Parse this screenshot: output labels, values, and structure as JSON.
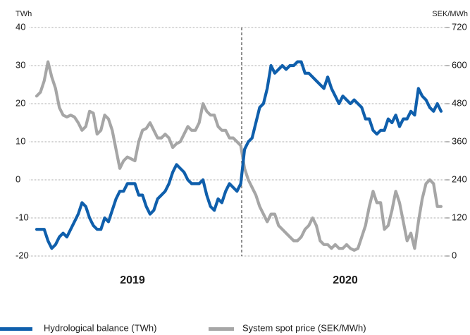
{
  "chart_data": {
    "type": "line",
    "y_label": "TWh",
    "y2_label": "SEK/MWh",
    "x_groups": [
      "2019",
      "2020"
    ],
    "ylim": [
      -20,
      40
    ],
    "yticks": [
      -20,
      -10,
      0,
      10,
      20,
      30,
      40
    ],
    "y2lim": [
      0,
      720
    ],
    "y2ticks": [
      0,
      120,
      240,
      360,
      480,
      600,
      720
    ],
    "grid": true,
    "legend": "bottom",
    "categories": [
      null,
      null,
      null,
      null,
      null,
      null,
      null,
      null,
      null,
      null,
      null,
      null,
      null,
      null,
      null,
      null,
      null,
      null,
      null,
      null,
      null,
      null,
      null,
      null,
      null,
      null,
      null,
      null,
      null,
      null,
      null,
      null,
      null,
      null,
      null,
      null,
      null,
      null,
      null,
      null,
      null,
      null,
      null,
      null,
      null,
      null,
      null,
      null,
      null,
      null,
      null,
      null,
      null,
      null,
      null,
      null,
      null,
      null,
      null,
      null,
      null,
      null,
      null,
      null,
      null,
      null,
      null,
      null,
      null,
      null,
      null,
      null,
      null,
      null,
      null,
      null,
      null,
      null,
      null,
      null,
      null,
      null,
      null,
      null,
      null,
      null,
      null,
      null,
      null,
      null,
      null,
      null,
      null,
      null,
      null,
      null,
      null,
      null,
      null,
      null,
      null,
      null,
      null,
      null,
      null,
      null,
      null,
      null
    ],
    "series": [
      {
        "name": "Hydrological balance (TWh)",
        "color": "#0f5fac",
        "axis": "y",
        "values": [
          -13,
          -13,
          -13,
          -16,
          -18,
          -17,
          -15,
          -14,
          -15,
          -13,
          -11,
          -9,
          -6,
          -7,
          -10,
          -12,
          -13,
          -13,
          -10,
          -11,
          -8,
          -5,
          -3,
          -3,
          -1,
          -1,
          -1,
          -4,
          -4,
          -7,
          -9,
          -8,
          -5,
          -4,
          -3,
          -1,
          2,
          4,
          3,
          2,
          0,
          -1,
          -1,
          -1,
          0,
          -4,
          -7,
          -8,
          -5,
          -6,
          -3,
          -1,
          -2,
          -3,
          -1,
          8,
          10,
          11,
          15,
          19,
          20,
          24,
          30,
          28,
          29,
          30,
          29,
          30,
          30,
          31,
          31,
          28,
          28,
          27,
          26,
          25,
          24,
          27,
          24,
          22,
          20,
          22,
          21,
          20,
          21,
          20,
          19,
          16,
          16,
          13,
          12,
          13,
          13,
          16,
          15,
          17,
          14,
          16,
          16,
          18,
          17,
          24,
          22,
          21,
          19,
          18,
          20,
          18
        ]
      },
      {
        "name": "System spot price (SEK/MWh)",
        "color": "#a6a6a6",
        "axis": "y2",
        "values": [
          504,
          516,
          552,
          612,
          564,
          528,
          468,
          444,
          438,
          444,
          438,
          420,
          396,
          408,
          456,
          450,
          384,
          396,
          444,
          432,
          396,
          336,
          276,
          300,
          312,
          306,
          300,
          360,
          396,
          402,
          420,
          396,
          372,
          372,
          384,
          372,
          342,
          354,
          360,
          384,
          408,
          396,
          396,
          420,
          480,
          456,
          444,
          444,
          408,
          396,
          396,
          372,
          372,
          360,
          348,
          276,
          240,
          216,
          192,
          156,
          132,
          108,
          132,
          132,
          96,
          84,
          72,
          60,
          48,
          48,
          60,
          84,
          96,
          120,
          96,
          48,
          36,
          36,
          24,
          36,
          24,
          24,
          36,
          24,
          18,
          24,
          60,
          96,
          156,
          204,
          168,
          168,
          84,
          96,
          144,
          204,
          168,
          108,
          48,
          72,
          24,
          108,
          180,
          228,
          240,
          228,
          156,
          156
        ]
      }
    ]
  }
}
